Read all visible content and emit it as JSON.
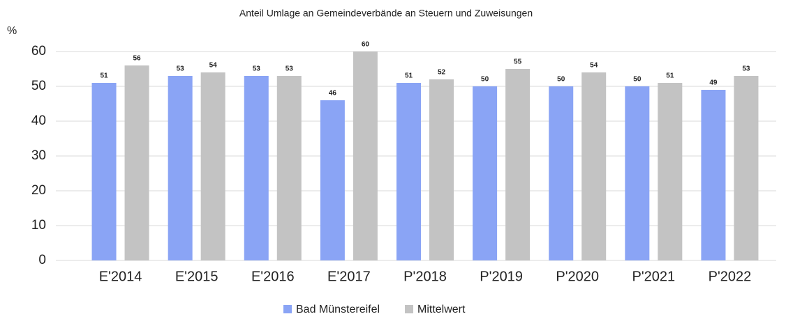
{
  "chart_data": {
    "type": "bar",
    "title": "Anteil Umlage an Gemeindeverbände an Steuern und Zuweisungen",
    "y_label": "%",
    "categories": [
      "E'2014",
      "E'2015",
      "E'2016",
      "E'2017",
      "P'2018",
      "P'2019",
      "P'2020",
      "P'2021",
      "P'2022"
    ],
    "series": [
      {
        "name": "Bad Münstereifel",
        "color": "#8aa4f5",
        "values": [
          51,
          53,
          53,
          46,
          51,
          50,
          50,
          50,
          49
        ]
      },
      {
        "name": "Mittelwert",
        "color": "#c3c3c3",
        "values": [
          56,
          54,
          53,
          60,
          52,
          55,
          54,
          51,
          53
        ]
      }
    ],
    "ylim": [
      0,
      60
    ],
    "yticks": [
      0,
      10,
      20,
      30,
      40,
      50,
      60
    ],
    "grid": true,
    "legend": "bottom"
  }
}
